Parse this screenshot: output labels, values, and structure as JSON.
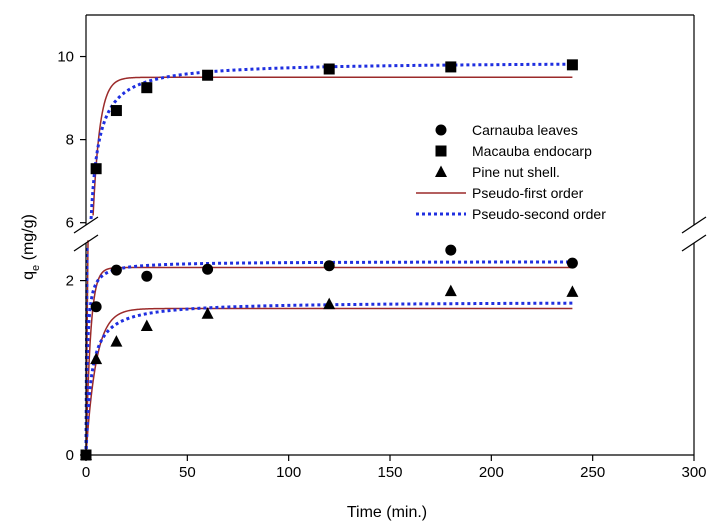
{
  "chart_data": {
    "type": "scatter",
    "title": "",
    "xlabel": "Time (min.)",
    "ylabel": {
      "main": "q",
      "subscript": "e",
      "rest": " (mg/g)"
    },
    "xlim": [
      0,
      300
    ],
    "xticks": [
      0,
      50,
      100,
      150,
      200,
      250,
      300
    ],
    "y_axis_break": {
      "lower_range": [
        0,
        2.5
      ],
      "upper_range": [
        5.8,
        11
      ],
      "lower_ticks": [
        0,
        2
      ],
      "upper_ticks": [
        6,
        8,
        10
      ]
    },
    "grid": false,
    "legend_position": "right",
    "series": [
      {
        "name": "Carnauba leaves",
        "kind": "points",
        "marker": "circle",
        "x": [
          0,
          5,
          15,
          30,
          60,
          120,
          180,
          240
        ],
        "y": [
          0,
          1.7,
          2.12,
          2.05,
          2.13,
          2.17,
          2.35,
          2.2
        ]
      },
      {
        "name": "Macauba endocarp",
        "kind": "points",
        "marker": "square",
        "x": [
          0,
          5,
          15,
          30,
          60,
          120,
          180,
          240
        ],
        "y": [
          0,
          7.3,
          8.7,
          9.25,
          9.55,
          9.7,
          9.75,
          9.8
        ]
      },
      {
        "name": "Pine nut shell.",
        "kind": "points",
        "marker": "triangle",
        "x": [
          0,
          5,
          15,
          30,
          60,
          120,
          180,
          240
        ],
        "y": [
          0,
          1.1,
          1.3,
          1.48,
          1.62,
          1.73,
          1.88,
          1.87
        ]
      },
      {
        "name": "Pseudo-first order",
        "kind": "fit-lines",
        "style": "solid",
        "color": "#9b2a2a",
        "curves": [
          {
            "model": "first",
            "qe": 9.5,
            "k": 0.3
          },
          {
            "model": "first",
            "qe": 2.15,
            "k": 0.45
          },
          {
            "model": "first",
            "qe": 1.68,
            "k": 0.2
          }
        ]
      },
      {
        "name": "Pseudo-second order",
        "kind": "fit-lines",
        "style": "dotted",
        "color": "#1f2fe0",
        "curves": [
          {
            "model": "second",
            "qe": 9.88,
            "k": 0.065
          },
          {
            "model": "second",
            "qe": 2.22,
            "k": 0.7
          },
          {
            "model": "second",
            "qe": 1.76,
            "k": 0.22
          }
        ]
      }
    ]
  }
}
